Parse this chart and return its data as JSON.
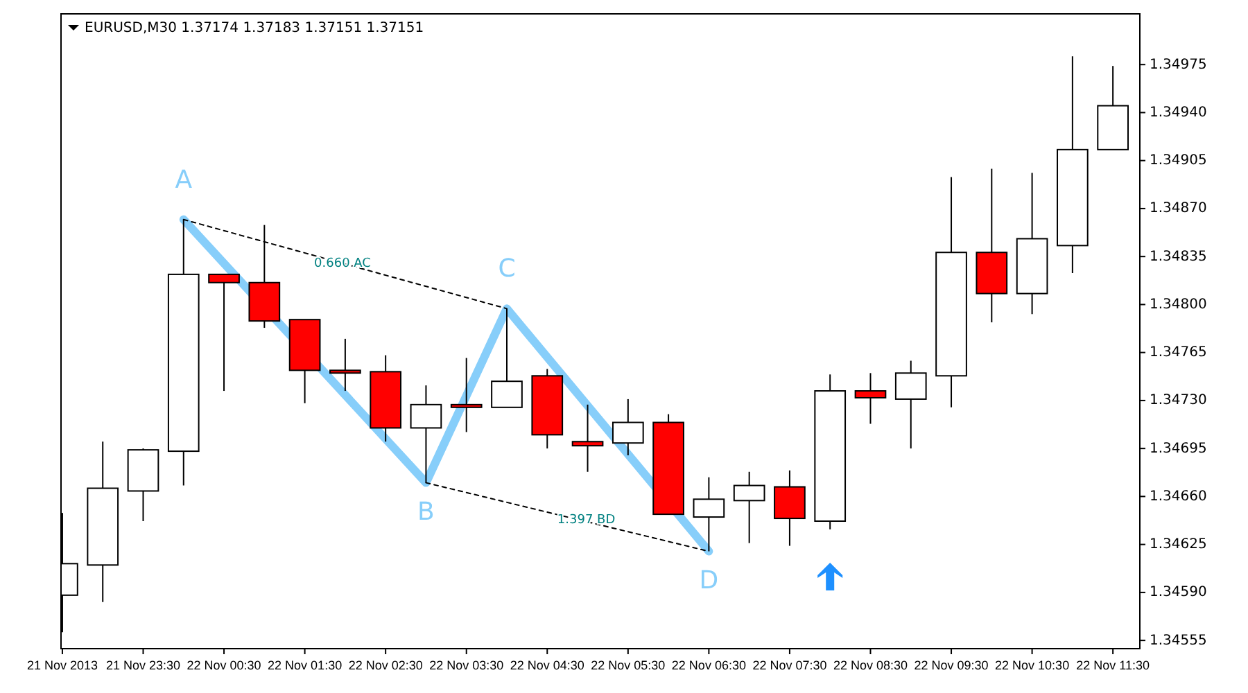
{
  "chart_data": {
    "type": "candlestick",
    "title": "EURUSD,M30  1.37174 1.37183 1.37151 1.37151",
    "x": [
      "2013-11-21T22:30",
      "2013-11-21T23:00",
      "2013-11-21T23:30",
      "2013-11-22T00:00",
      "2013-11-22T00:30",
      "2013-11-22T01:00",
      "2013-11-22T01:30",
      "2013-11-22T02:00",
      "2013-11-22T02:30",
      "2013-11-22T03:00",
      "2013-11-22T03:30",
      "2013-11-22T04:00",
      "2013-11-22T04:30",
      "2013-11-22T05:00",
      "2013-11-22T05:30",
      "2013-11-22T06:00",
      "2013-11-22T06:30",
      "2013-11-22T07:00",
      "2013-11-22T07:30",
      "2013-11-22T08:00",
      "2013-11-22T08:30",
      "2013-11-22T09:00",
      "2013-11-22T09:30",
      "2013-11-22T10:00",
      "2013-11-22T10:30",
      "2013-11-22T11:00",
      "2013-11-22T11:30"
    ],
    "ohlc": [
      [
        1.34588,
        1.34648,
        1.34561,
        1.34611
      ],
      [
        1.3461,
        1.347,
        1.34583,
        1.34666
      ],
      [
        1.34664,
        1.34695,
        1.34642,
        1.34694
      ],
      [
        1.34693,
        1.34862,
        1.34668,
        1.34822
      ],
      [
        1.34822,
        1.34822,
        1.34737,
        1.34816
      ],
      [
        1.34816,
        1.34858,
        1.34783,
        1.34788
      ],
      [
        1.34789,
        1.34789,
        1.34728,
        1.34752
      ],
      [
        1.34752,
        1.34775,
        1.34737,
        1.3475
      ],
      [
        1.34751,
        1.34763,
        1.347,
        1.3471
      ],
      [
        1.3471,
        1.34741,
        1.3467,
        1.34727
      ],
      [
        1.34727,
        1.34761,
        1.34707,
        1.34725
      ],
      [
        1.34725,
        1.34797,
        1.34725,
        1.34744
      ],
      [
        1.34748,
        1.34753,
        1.34695,
        1.34705
      ],
      [
        1.347,
        1.34727,
        1.34678,
        1.34697
      ],
      [
        1.34699,
        1.34731,
        1.3469,
        1.34714
      ],
      [
        1.34714,
        1.3472,
        1.34647,
        1.34647
      ],
      [
        1.34645,
        1.34674,
        1.3462,
        1.34658
      ],
      [
        1.34657,
        1.34678,
        1.34626,
        1.34668
      ],
      [
        1.34667,
        1.34679,
        1.34624,
        1.34644
      ],
      [
        1.34642,
        1.34749,
        1.34636,
        1.34737
      ],
      [
        1.34737,
        1.3475,
        1.34713,
        1.34732
      ],
      [
        1.34731,
        1.34759,
        1.34695,
        1.3475
      ],
      [
        1.34748,
        1.34893,
        1.34725,
        1.34838
      ],
      [
        1.34838,
        1.34899,
        1.34787,
        1.34808
      ],
      [
        1.34808,
        1.34896,
        1.34793,
        1.34848
      ],
      [
        1.34843,
        1.34981,
        1.34823,
        1.34913
      ],
      [
        1.34913,
        1.34974,
        1.34913,
        1.34945
      ]
    ],
    "colors": [
      "#ffffff",
      "#ffffff",
      "#ffffff",
      "#ffffff",
      "#ff0000",
      "#ff0000",
      "#ff0000",
      "#ff0000",
      "#ff0000",
      "#ffffff",
      "#ff0000",
      "#ffffff",
      "#ff0000",
      "#ff0000",
      "#ffffff",
      "#ff0000",
      "#ffffff",
      "#ffffff",
      "#ff0000",
      "#ffffff",
      "#ff0000",
      "#ffffff",
      "#ffffff",
      "#ff0000",
      "#ffffff",
      "#ffffff",
      "#ffffff"
    ],
    "series": [
      {
        "type": "line",
        "color": "#87cefa",
        "x": [
          "2013-11-22T00:00",
          "2013-11-22T03:00",
          "2013-11-22T04:00",
          "2013-11-22T06:30"
        ],
        "values": [
          1.34862,
          1.3467,
          1.34797,
          1.3462
        ]
      },
      {
        "type": "line",
        "color": "#000000",
        "line_style": "dashed",
        "x": [
          "2013-11-22T00:00",
          "2013-11-22T04:00"
        ],
        "values": [
          1.34862,
          1.34797
        ]
      },
      {
        "type": "line",
        "color": "#000000",
        "line_style": "dashed",
        "x": [
          "2013-11-22T03:00",
          "2013-11-22T06:30"
        ],
        "values": [
          1.3467,
          1.3462
        ]
      }
    ],
    "annotations": [
      {
        "text": "A",
        "x": "2013-11-22T00:00",
        "y": 1.34862
      },
      {
        "text": "B",
        "x": "2013-11-22T03:00",
        "y": 1.3467
      },
      {
        "text": "C",
        "x": "2013-11-22T04:00",
        "y": 1.34797
      },
      {
        "text": "D",
        "x": "2013-11-22T06:30",
        "y": 1.3462
      },
      {
        "text": "0.660 AC",
        "x": "2013-11-22T01:58",
        "y": 1.34825
      },
      {
        "text": "1.397 BD",
        "x": "2013-11-22T04:59",
        "y": 1.34638
      }
    ],
    "xlim": [
      "2013-11-21T22:29",
      "2013-11-22T11:50"
    ],
    "xticks": [
      {
        "value": "2013-11-21T22:30",
        "label": "21 Nov 2013"
      },
      {
        "value": "2013-11-21T23:30",
        "label": "21 Nov 23:30"
      },
      {
        "value": "2013-11-22T00:30",
        "label": "22 Nov 00:30"
      },
      {
        "value": "2013-11-22T01:30",
        "label": "22 Nov 01:30"
      },
      {
        "value": "2013-11-22T02:30",
        "label": "22 Nov 02:30"
      },
      {
        "value": "2013-11-22T03:30",
        "label": "22 Nov 03:30"
      },
      {
        "value": "2013-11-22T04:30",
        "label": "22 Nov 04:30"
      },
      {
        "value": "2013-11-22T05:30",
        "label": "22 Nov 05:30"
      },
      {
        "value": "2013-11-22T06:30",
        "label": "22 Nov 06:30"
      },
      {
        "value": "2013-11-22T07:30",
        "label": "22 Nov 07:30"
      },
      {
        "value": "2013-11-22T08:30",
        "label": "22 Nov 08:30"
      },
      {
        "value": "2013-11-22T09:30",
        "label": "22 Nov 09:30"
      },
      {
        "value": "2013-11-22T10:30",
        "label": "22 Nov 10:30"
      },
      {
        "value": "2013-11-22T11:30",
        "label": "22 Nov 11:30"
      }
    ],
    "ylim": [
      1.34549,
      1.35012
    ],
    "yticks": [
      {
        "value": 1.34555,
        "label": "1.34555"
      },
      {
        "value": 1.3459,
        "label": "1.34590"
      },
      {
        "value": 1.34625,
        "label": "1.34625"
      },
      {
        "value": 1.3466,
        "label": "1.34660"
      },
      {
        "value": 1.34695,
        "label": "1.34695"
      },
      {
        "value": 1.3473,
        "label": "1.34730"
      },
      {
        "value": 1.34765,
        "label": "1.34765"
      },
      {
        "value": 1.348,
        "label": "1.34800"
      },
      {
        "value": 1.34835,
        "label": "1.34835"
      },
      {
        "value": 1.3487,
        "label": "1.34870"
      },
      {
        "value": 1.34905,
        "label": "1.34905"
      },
      {
        "value": 1.3494,
        "label": "1.34940"
      },
      {
        "value": 1.34975,
        "label": "1.34975"
      }
    ],
    "grid": false
  }
}
